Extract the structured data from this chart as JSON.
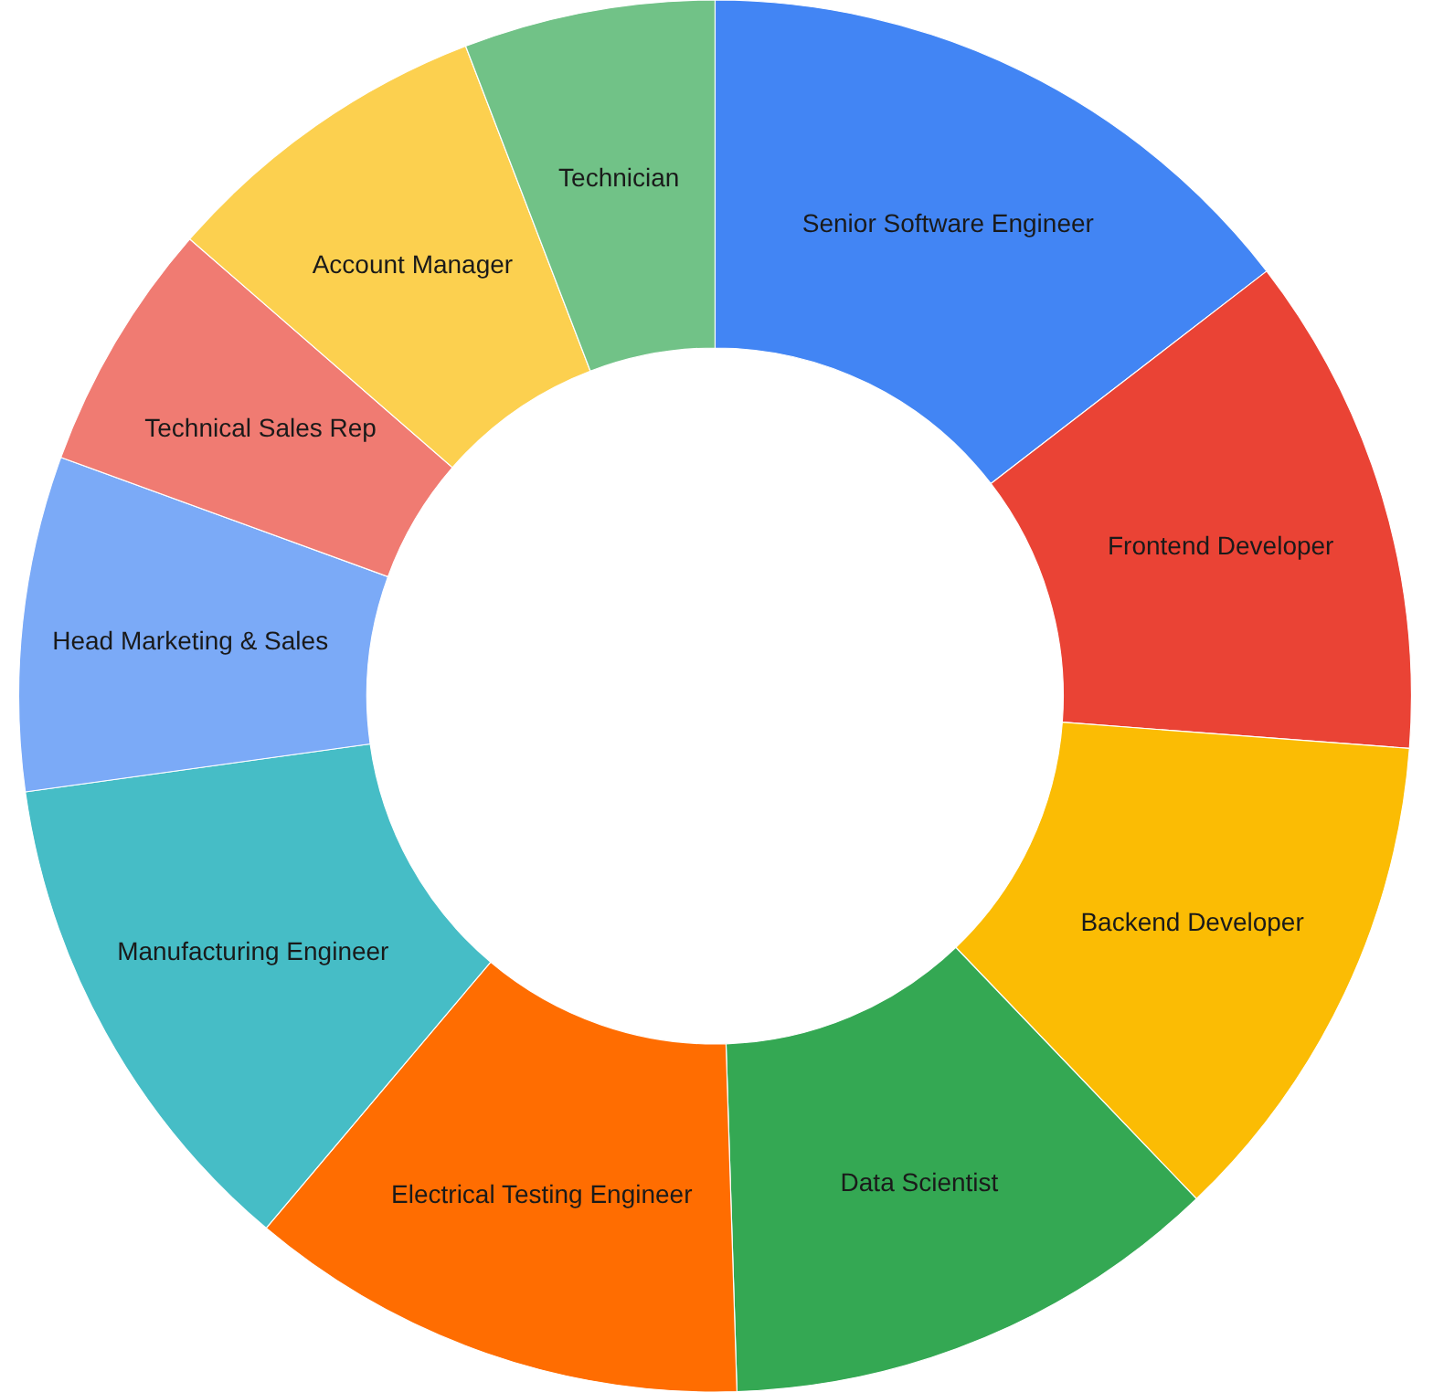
{
  "chart_data": {
    "type": "donut",
    "categories": [
      "Senior Software Engineer",
      "Frontend Developer",
      "Backend Developer",
      "Data Scientist",
      "Electrical Testing Engineer",
      "Manufacturing Engineer",
      "Head Marketing & Sales",
      "Technical Sales Rep",
      "Account Manager",
      "Technician"
    ],
    "values": [
      14.55,
      11.65,
      11.65,
      11.65,
      11.65,
      11.65,
      7.77,
      5.83,
      7.77,
      5.83
    ],
    "colors": [
      "#4285f4",
      "#ea4335",
      "#fbbc04",
      "#34a853",
      "#ff6d01",
      "#46bdc6",
      "#7baaf7",
      "#f07b72",
      "#fcd04f",
      "#71c287"
    ]
  }
}
